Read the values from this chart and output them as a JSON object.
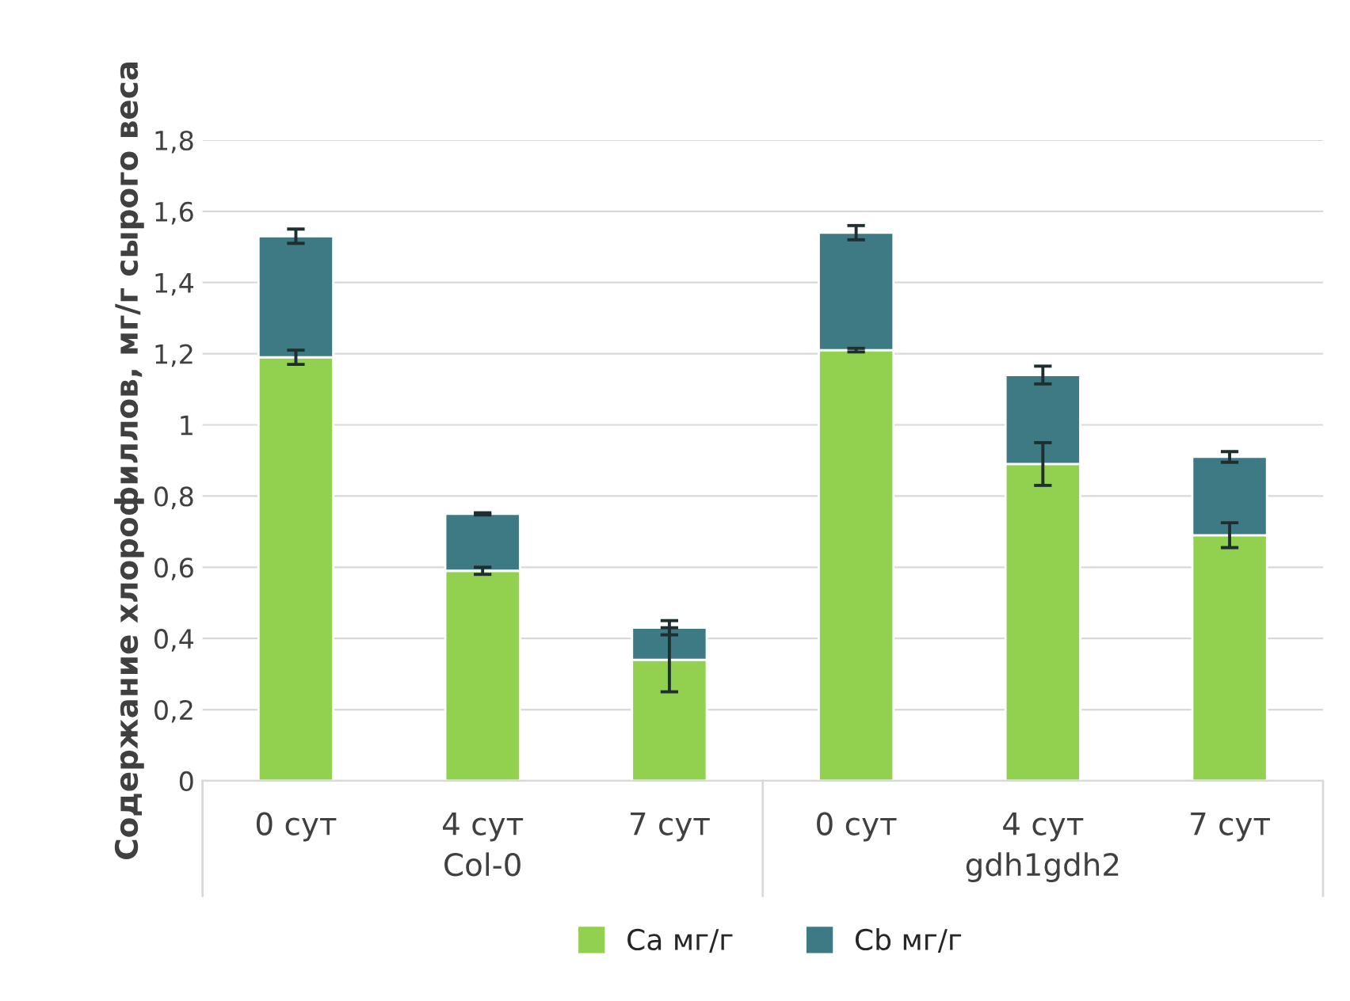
{
  "chart_data": {
    "type": "bar",
    "stacked": true,
    "ylabel": "Содержание хлорофиллов, мг/г сырого веса",
    "categories": [
      "0 сут",
      "4 сут",
      "7 сут",
      "0 сут",
      "4 сут",
      "7 сут"
    ],
    "series": [
      {
        "name": "Ca мг/г",
        "color": "#92d050",
        "values": [
          1.19,
          0.59,
          0.34,
          1.21,
          0.89,
          0.69
        ],
        "errors": [
          0.02,
          0.01,
          0.09,
          0.005,
          0.06,
          0.035
        ]
      },
      {
        "name": "Cb мг/г",
        "color": "#3e7a84",
        "values": [
          0.34,
          0.16,
          0.09,
          0.33,
          0.25,
          0.22
        ],
        "errors": [
          0.02,
          0.003,
          0.02,
          0.02,
          0.025,
          0.015
        ]
      }
    ],
    "ylim": [
      0,
      1.8
    ],
    "yticks": [
      0,
      {
        "value": 0.2,
        "label": "0,2"
      },
      {
        "value": 0.4,
        "label": "0,4"
      },
      {
        "value": 0.6,
        "label": "0,6"
      },
      {
        "value": 0.8,
        "label": "0,8"
      },
      1,
      {
        "value": 1.2,
        "label": "1,2"
      },
      {
        "value": 1.4,
        "label": "1,4"
      },
      {
        "value": 1.6,
        "label": "1,6"
      },
      {
        "value": 1.8,
        "label": "1,8"
      }
    ],
    "annotations": [
      "Col-0",
      "gdh1gdh2"
    ],
    "grid": "y",
    "legend": "bottom"
  }
}
